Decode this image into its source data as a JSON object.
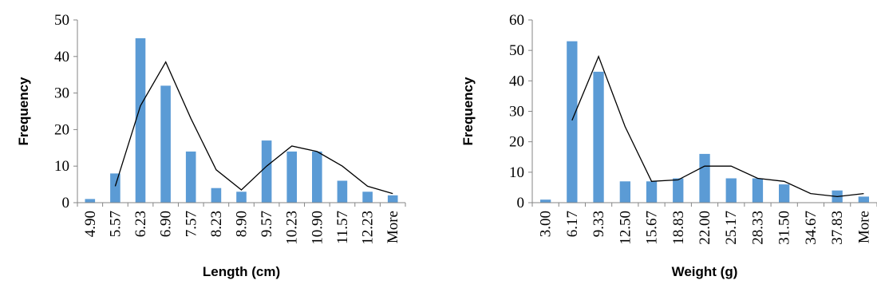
{
  "chart_data": [
    {
      "type": "bar",
      "title": "",
      "xlabel": "Length (cm)",
      "ylabel": "Frequency",
      "ylim": [
        0,
        50
      ],
      "yticks": [
        0,
        10,
        20,
        30,
        40,
        50
      ],
      "categories": [
        "4.90",
        "5.57",
        "6.23",
        "6.90",
        "7.57",
        "8.23",
        "8.90",
        "9.57",
        "10.23",
        "10.90",
        "11.57",
        "12.23",
        "More"
      ],
      "values": [
        1,
        8,
        45,
        32,
        14,
        4,
        3,
        17,
        14,
        14,
        6,
        3,
        2
      ],
      "trend_line": [
        null,
        4.5,
        26.5,
        38.5,
        23,
        9,
        3.5,
        10,
        15.5,
        14,
        10,
        4.5,
        2.5
      ],
      "bar_color": "#5b9bd5",
      "line_color": "#000000",
      "grid": false,
      "legend": "none"
    },
    {
      "type": "bar",
      "title": "",
      "xlabel": "Weight (g)",
      "ylabel": "Frequency",
      "ylim": [
        0,
        60
      ],
      "yticks": [
        0,
        10,
        20,
        30,
        40,
        50,
        60
      ],
      "categories": [
        "3.00",
        "6.17",
        "9.33",
        "12.50",
        "15.67",
        "18.83",
        "22.00",
        "25.17",
        "28.33",
        "31.50",
        "34.67",
        "37.83",
        "More"
      ],
      "values": [
        1,
        53,
        43,
        7,
        7,
        8,
        16,
        8,
        8,
        6,
        0,
        4,
        2
      ],
      "trend_line": [
        null,
        27,
        48,
        25,
        7,
        7.5,
        12,
        12,
        8,
        7,
        3,
        2,
        3
      ],
      "bar_color": "#5b9bd5",
      "line_color": "#000000",
      "grid": false,
      "legend": "none"
    }
  ]
}
